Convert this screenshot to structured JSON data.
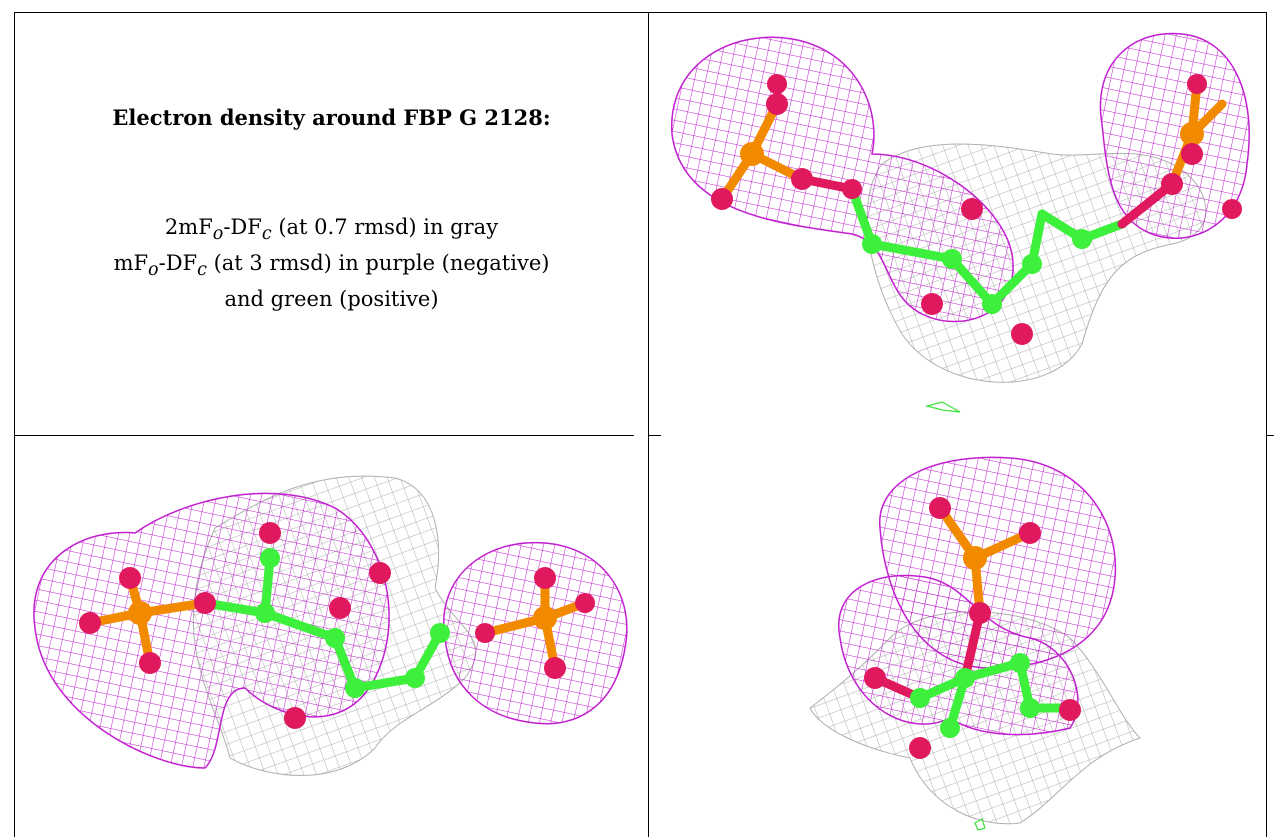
{
  "text_panel": {
    "title": "Electron density around FBP G 2128:",
    "line1_pre": "2mF",
    "line1_sub1": "o",
    "line1_mid": "-DF",
    "line1_sub2": "c",
    "line1_post": " (at 0.7 rmsd) in gray",
    "line2_pre": "mF",
    "line2_sub1": "o",
    "line2_mid": "-DF",
    "line2_sub2": "c",
    "line2_post": " (at 3 rmsd) in purple (negative)",
    "line3": "and green (positive)"
  },
  "colors": {
    "negative_density": "#c21fd0",
    "positive_density": "#3ae23a",
    "reference_density": "#a9a9a9",
    "carbon": "#3cf03c",
    "phosphorus": "#f28a00",
    "oxygen": "#e0185e"
  }
}
